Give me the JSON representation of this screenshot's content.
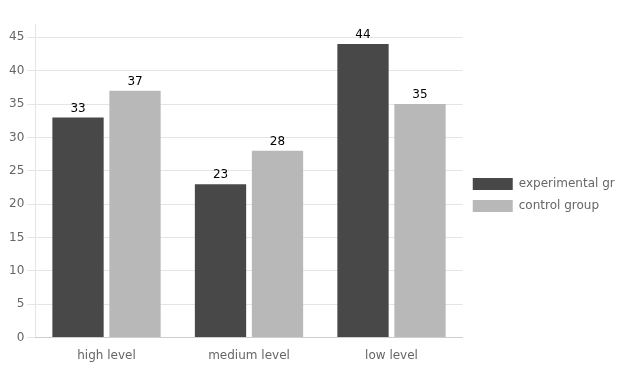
{
  "chart_data": {
    "type": "bar",
    "categories": [
      "high level",
      "medium level",
      "low level"
    ],
    "series": [
      {
        "name": "experimental group",
        "color": "#484848",
        "values": [
          33,
          23,
          44
        ]
      },
      {
        "name": "control group",
        "color": "#b8b8b8",
        "values": [
          37,
          28,
          35
        ]
      }
    ],
    "ylim": [
      0,
      47
    ],
    "yticks": [
      0,
      5,
      10,
      15,
      20,
      25,
      30,
      35,
      40,
      45
    ],
    "grid": true,
    "legend": "right",
    "data_labels": true
  }
}
